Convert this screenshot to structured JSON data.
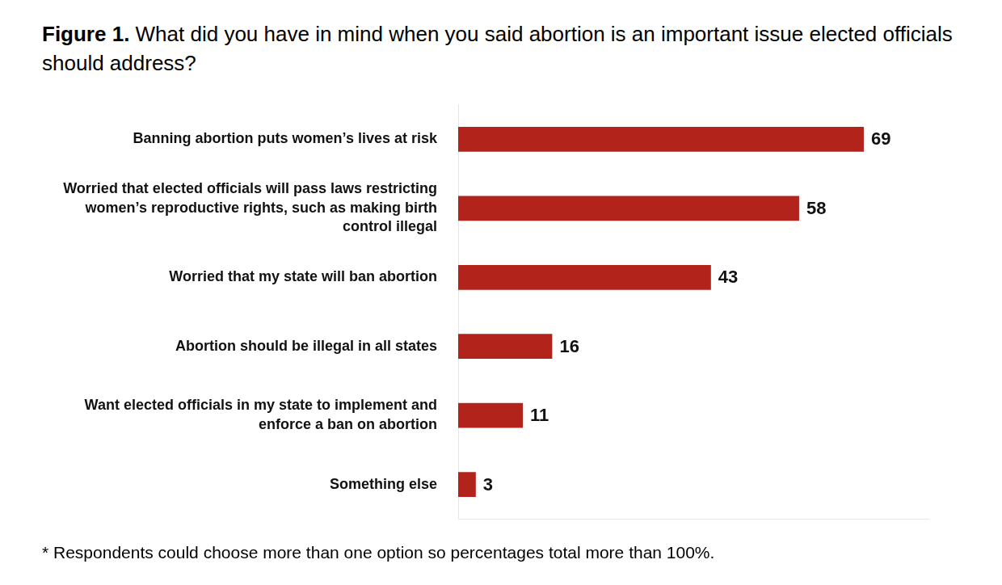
{
  "chart_data": {
    "type": "bar",
    "title": "Figure 1. What did you have in mind when you said abortion is an important issue elected officials should address?",
    "annotations": [
      "* Respondents could choose more than one option so percentages total more than 100%."
    ],
    "categories": [
      "Banning abortion puts women’s lives at risk",
      "Worried that elected officials will pass laws restricting women’s reproductive rights, such as making birth control illegal",
      "Worried that my state will ban abortion",
      "Abortion should be illegal in all states",
      "Want elected officials in my state to implement and enforce a ban on abortion",
      "Something else"
    ],
    "values": [
      69,
      58,
      43,
      16,
      11,
      3
    ],
    "color": "#b2241b",
    "orientation": "horizontal",
    "data_labels": true,
    "tick_labels": "y",
    "grid": false,
    "xlim": [
      0,
      80
    ]
  }
}
